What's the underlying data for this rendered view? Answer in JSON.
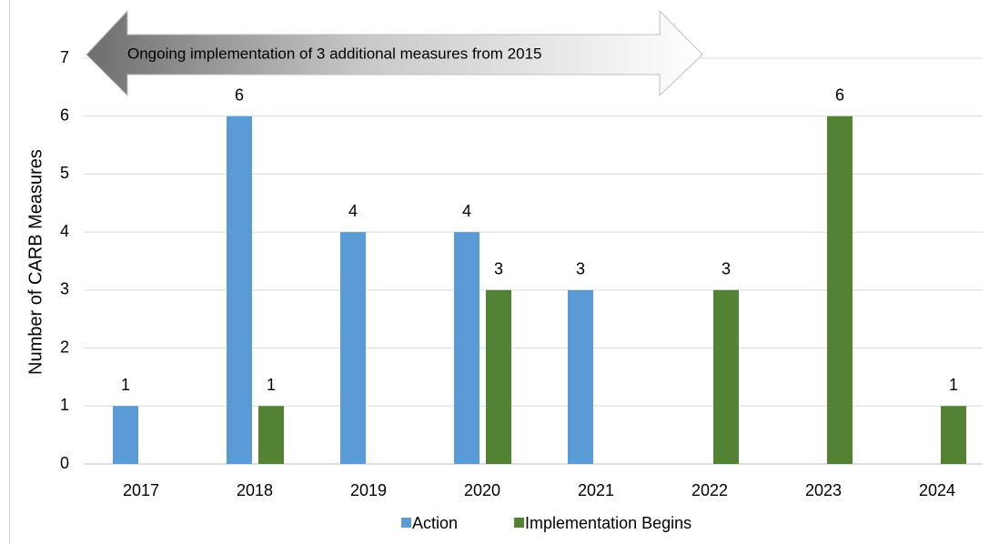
{
  "chart_data": {
    "type": "bar",
    "y_label": "Number of CARB Measures",
    "annotation": "Ongoing implementation of 3 additional measures from 2015",
    "categories": [
      "2017",
      "2018",
      "2019",
      "2020",
      "2021",
      "2022",
      "2023",
      "2024"
    ],
    "series": [
      {
        "name": "Action",
        "color": "#5b9bd5",
        "values": [
          1,
          6,
          4,
          4,
          3,
          null,
          null,
          null
        ]
      },
      {
        "name": "Implementation Begins",
        "color": "#548235",
        "values": [
          null,
          1,
          null,
          3,
          null,
          3,
          6,
          1
        ]
      }
    ],
    "ylim": [
      0,
      7
    ],
    "yticks": [
      0,
      1,
      2,
      3,
      4,
      5,
      6,
      7
    ],
    "grid": true,
    "legend": "bottom"
  }
}
